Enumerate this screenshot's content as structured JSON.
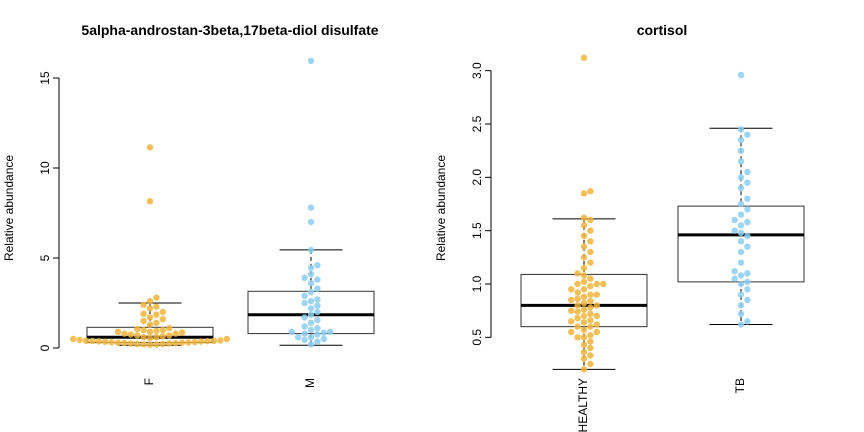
{
  "chart_data": [
    {
      "type": "boxplot-beeswarm",
      "title": "5alpha-androstan-3beta,17beta-diol disulfate",
      "ylabel": "Relative abundance",
      "ylim": [
        0,
        16
      ],
      "yticks": [
        0,
        5,
        10,
        15
      ],
      "categories": [
        "F",
        "M"
      ],
      "colors": [
        "#F0B43C",
        "#8CCDF0"
      ],
      "boxes": [
        {
          "min": 0.15,
          "q1": 0.3,
          "median": 0.6,
          "q3": 1.15,
          "max": 2.5
        },
        {
          "min": 0.15,
          "q1": 0.8,
          "median": 1.85,
          "q3": 3.15,
          "max": 5.45
        }
      ],
      "points": [
        [
          0.18,
          0.2,
          0.22,
          0.25,
          0.28,
          0.3,
          0.32,
          0.35,
          0.38,
          0.4,
          0.42,
          0.2,
          0.25,
          0.3,
          0.33,
          0.37,
          0.4,
          0.22,
          0.27,
          0.31,
          0.36,
          0.39,
          0.45,
          0.5,
          0.55,
          0.6,
          0.65,
          0.7,
          0.75,
          0.8,
          0.85,
          0.9,
          0.95,
          1.0,
          1.05,
          1.1,
          0.5,
          0.6,
          0.7,
          0.8,
          0.9,
          1.0,
          1.3,
          1.5,
          1.7,
          1.85,
          2.0,
          2.2,
          2.4,
          2.6,
          2.8,
          1.4,
          1.6,
          1.9,
          2.3,
          8.15,
          11.15
        ],
        [
          0.2,
          0.35,
          0.5,
          0.6,
          0.75,
          0.85,
          0.9,
          1.0,
          0.8,
          0.6,
          0.45,
          1.2,
          1.4,
          1.55,
          1.7,
          1.85,
          2.0,
          2.2,
          2.35,
          2.5,
          2.7,
          2.9,
          3.1,
          3.3,
          3.6,
          3.9,
          4.1,
          4.45,
          4.6,
          5.45,
          7.0,
          7.8,
          15.95,
          1.1,
          0.9,
          2.6,
          3.8
        ]
      ]
    },
    {
      "type": "boxplot-beeswarm",
      "title": "cortisol",
      "ylabel": "Relative abundance",
      "ylim": [
        0.4,
        3.1
      ],
      "yticks": [
        "0.5",
        "1.0",
        "1.5",
        "2.0",
        "2.5",
        "3.0"
      ],
      "categories": [
        "HEALTHY",
        "TB"
      ],
      "colors": [
        "#F0B43C",
        "#8CCDF0"
      ],
      "boxes": [
        {
          "min": 0.2,
          "q1": 0.6,
          "median": 0.8,
          "q3": 1.09,
          "max": 1.61
        },
        {
          "min": 0.62,
          "q1": 1.02,
          "median": 1.46,
          "q3": 1.73,
          "max": 2.46
        }
      ],
      "points": [
        [
          0.2,
          0.25,
          0.3,
          0.33,
          0.36,
          0.4,
          0.43,
          0.46,
          0.5,
          0.52,
          0.55,
          0.57,
          0.6,
          0.62,
          0.64,
          0.66,
          0.68,
          0.7,
          0.72,
          0.74,
          0.76,
          0.78,
          0.8,
          0.82,
          0.84,
          0.86,
          0.88,
          0.9,
          0.92,
          0.95,
          0.98,
          1.0,
          1.02,
          1.05,
          1.08,
          1.1,
          1.15,
          1.2,
          1.25,
          1.3,
          1.35,
          1.4,
          1.45,
          1.5,
          1.55,
          1.6,
          1.62,
          1.85,
          1.87,
          3.12,
          0.65,
          0.7,
          0.75,
          0.8,
          0.85,
          0.9,
          0.6,
          0.55,
          0.5,
          1.0,
          1.0,
          0.95
        ],
        [
          0.62,
          0.65,
          0.72,
          0.8,
          0.85,
          0.9,
          0.95,
          1.0,
          1.02,
          1.05,
          1.08,
          1.1,
          1.12,
          1.2,
          1.3,
          1.35,
          1.4,
          1.45,
          1.5,
          1.55,
          1.6,
          1.65,
          1.7,
          1.75,
          1.8,
          1.9,
          1.95,
          2.0,
          2.05,
          2.15,
          2.25,
          2.35,
          2.4,
          2.45,
          2.96,
          1.48,
          1.58
        ]
      ]
    }
  ]
}
